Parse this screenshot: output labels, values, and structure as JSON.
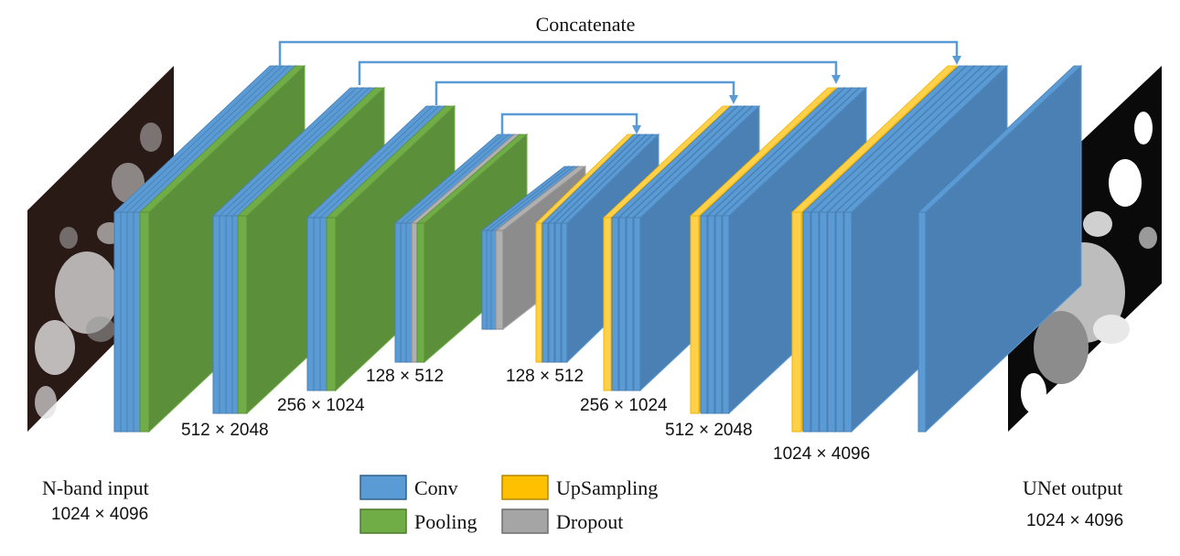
{
  "diagram": {
    "skip_label": "Concatenate",
    "input": {
      "title": "N-band input",
      "size": "1024 × 4096"
    },
    "output": {
      "title": "UNet output",
      "size": "1024 × 4096"
    },
    "dimension_labels": {
      "enc1": "512 × 2048",
      "enc2": "256 × 1024",
      "enc3": "128 × 512",
      "dec1": "128 × 512",
      "dec2": "256 × 1024",
      "dec3": "512 × 2048",
      "dec4": "1024 × 4096"
    },
    "legend": {
      "conv": "Conv",
      "pooling": "Pooling",
      "upsampling": "UpSampling",
      "dropout": "Dropout"
    },
    "colors": {
      "conv": "#4a80b4",
      "conv_edge": "#5b9bd5",
      "pooling": "#5b8f39",
      "pooling_edge": "#70ad47",
      "upsampling": "#f0b400",
      "dropout": "#8c8c8c",
      "arrow": "#5b9bd5"
    }
  }
}
